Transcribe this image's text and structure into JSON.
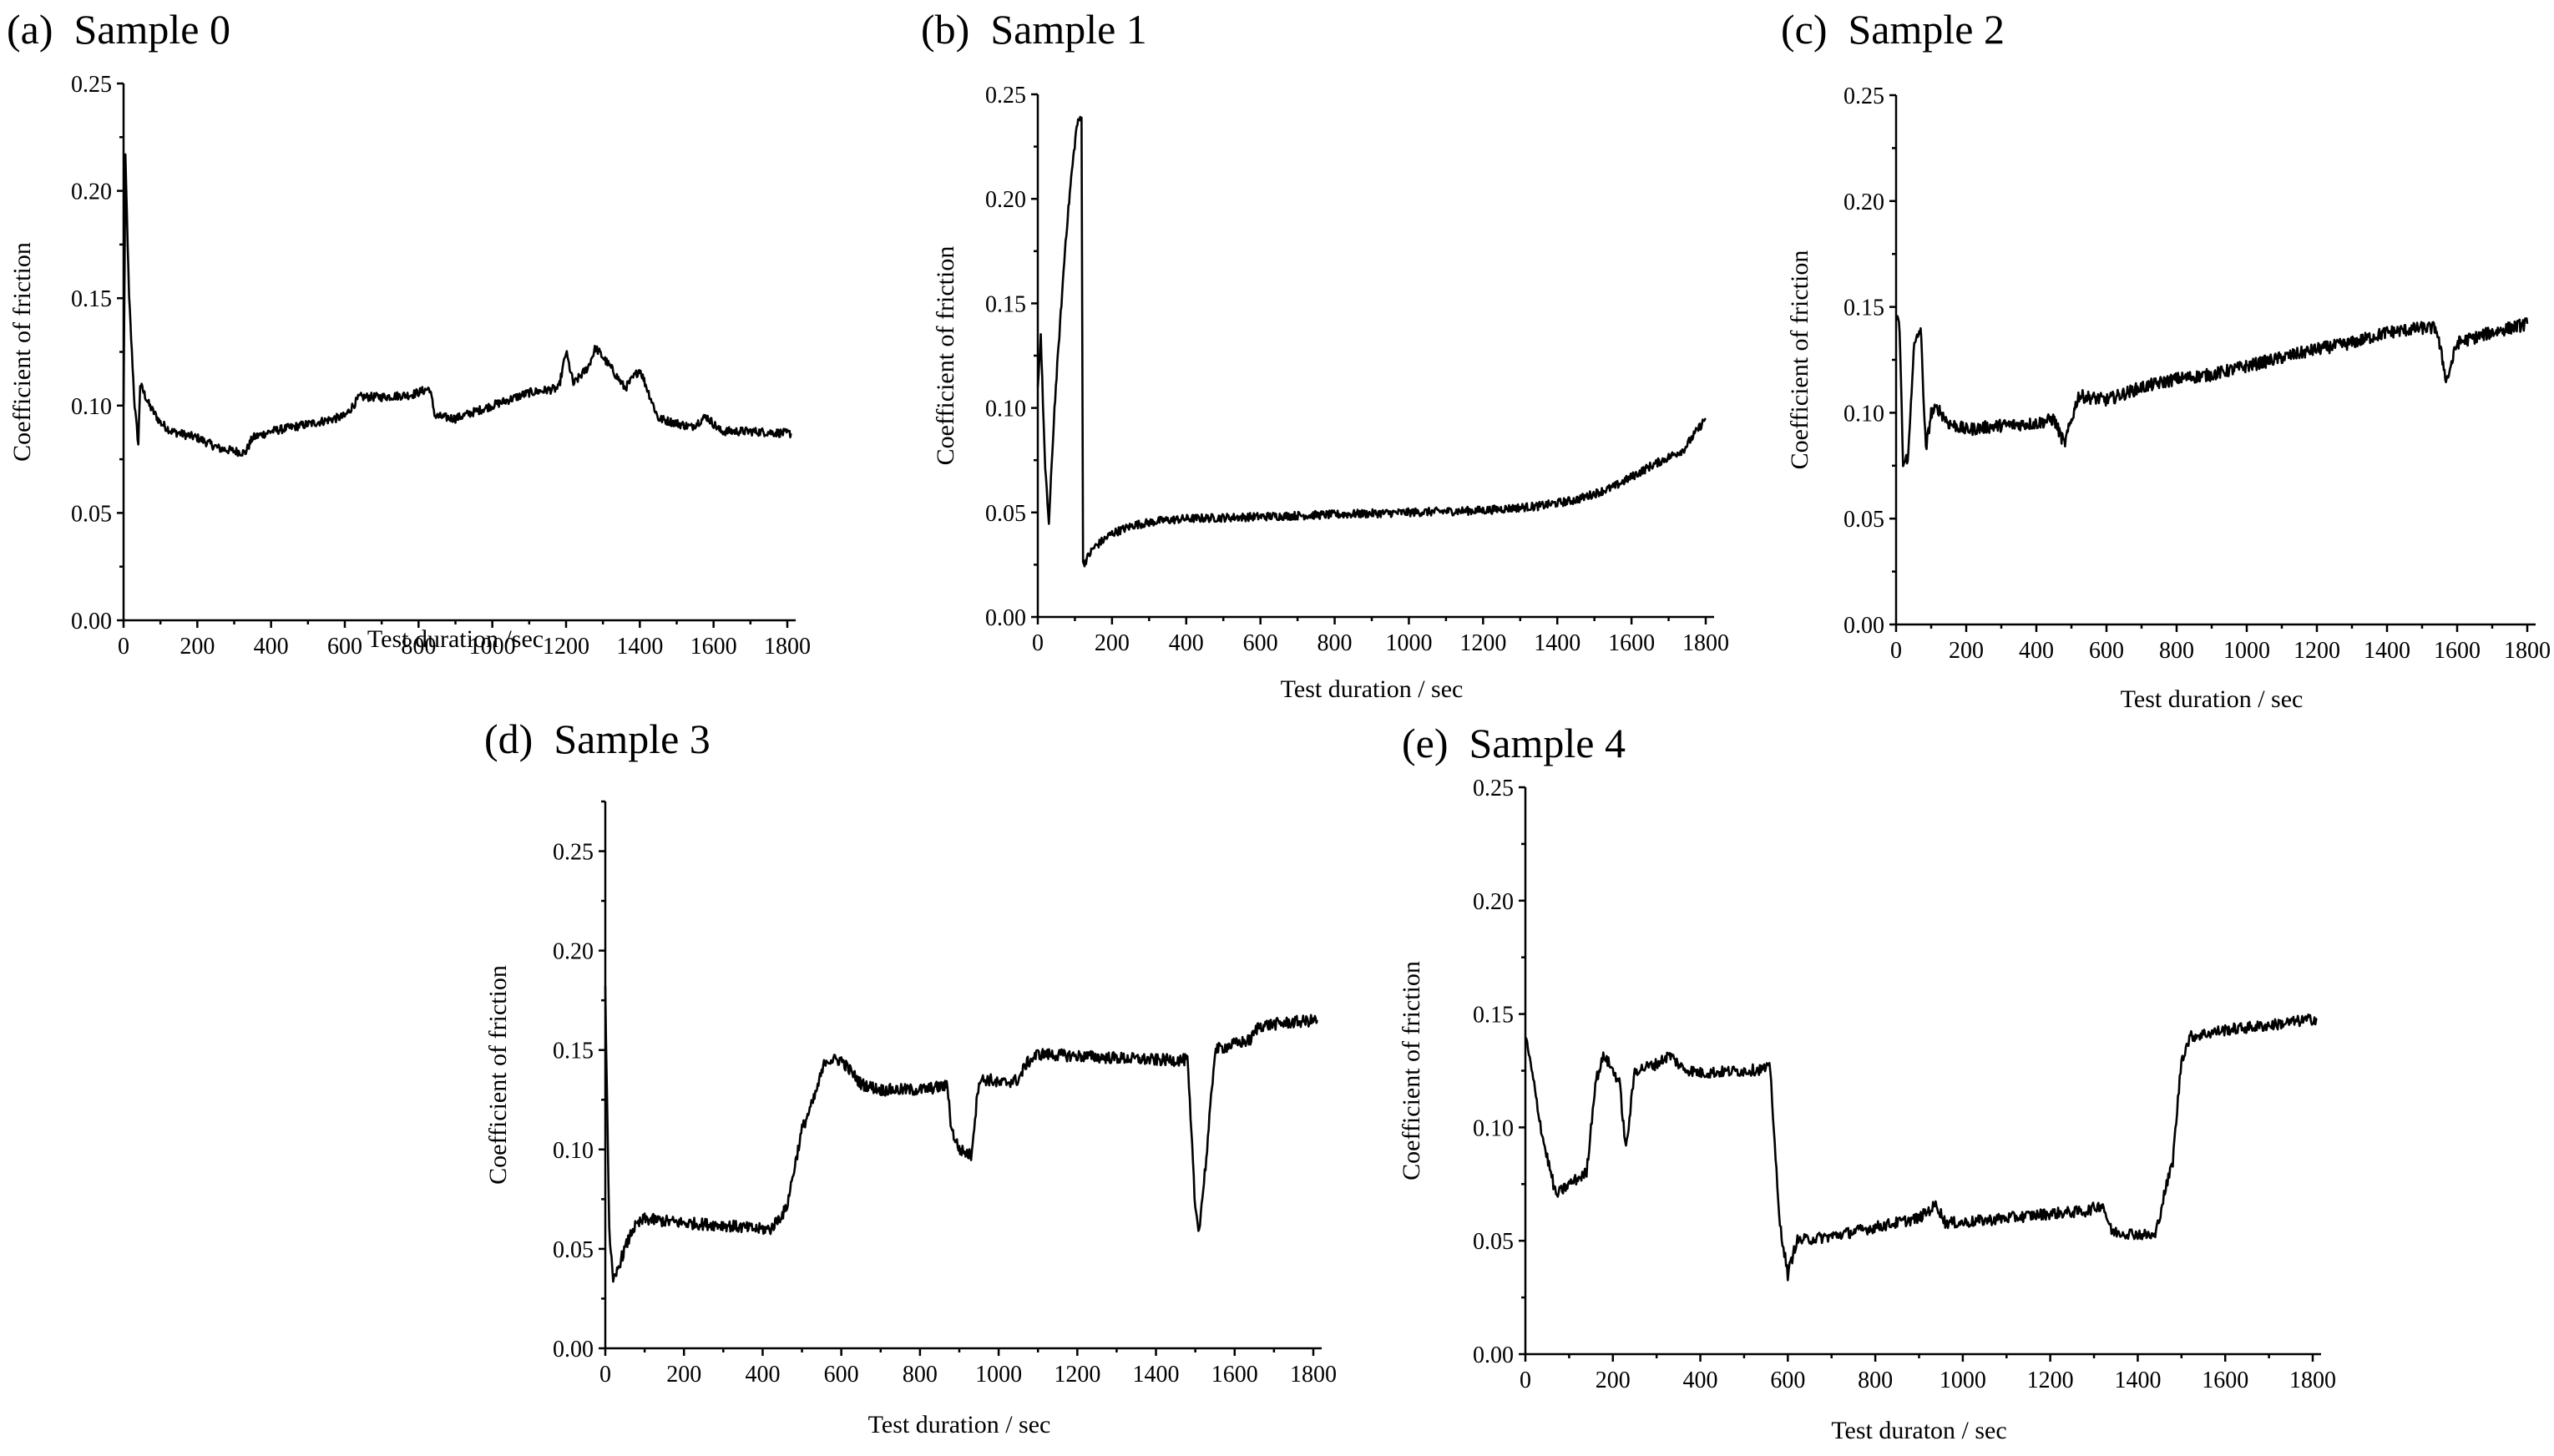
{
  "chart_data": [
    {
      "type": "line",
      "panel_label": "(a)",
      "title": "Sample 0",
      "xlabel": "Test duration /sec",
      "ylabel": "Coefficient of friction",
      "xlim": [
        0,
        1800
      ],
      "ylim": [
        0,
        0.25
      ],
      "x_ticks": [
        "0",
        "200",
        "400",
        "600",
        "800",
        "1000",
        "1200",
        "1400",
        "1600",
        "1800"
      ],
      "y_ticks": [
        "0.00",
        "0.05",
        "0.10",
        "0.15",
        "0.20",
        "0.25"
      ],
      "series": [
        {
          "name": "Sample 0",
          "noise": 0.002,
          "points": [
            [
              0,
              0.1
            ],
            [
              5,
              0.215
            ],
            [
              15,
              0.15
            ],
            [
              30,
              0.1
            ],
            [
              40,
              0.082
            ],
            [
              45,
              0.11
            ],
            [
              70,
              0.1
            ],
            [
              100,
              0.092
            ],
            [
              130,
              0.088
            ],
            [
              200,
              0.085
            ],
            [
              260,
              0.08
            ],
            [
              330,
              0.078
            ],
            [
              350,
              0.085
            ],
            [
              400,
              0.088
            ],
            [
              460,
              0.09
            ],
            [
              520,
              0.092
            ],
            [
              600,
              0.095
            ],
            [
              640,
              0.104
            ],
            [
              700,
              0.104
            ],
            [
              780,
              0.105
            ],
            [
              830,
              0.108
            ],
            [
              845,
              0.095
            ],
            [
              900,
              0.094
            ],
            [
              1000,
              0.1
            ],
            [
              1100,
              0.106
            ],
            [
              1180,
              0.108
            ],
            [
              1200,
              0.125
            ],
            [
              1220,
              0.11
            ],
            [
              1260,
              0.118
            ],
            [
              1280,
              0.127
            ],
            [
              1320,
              0.118
            ],
            [
              1360,
              0.108
            ],
            [
              1400,
              0.117
            ],
            [
              1450,
              0.094
            ],
            [
              1540,
              0.09
            ],
            [
              1580,
              0.095
            ],
            [
              1620,
              0.088
            ],
            [
              1700,
              0.088
            ],
            [
              1810,
              0.087
            ]
          ]
        }
      ]
    },
    {
      "type": "line",
      "panel_label": "(b)",
      "title": "Sample 1",
      "xlabel": "Test duration / sec",
      "ylabel": "Coefficient of friction",
      "xlim": [
        0,
        1800
      ],
      "ylim": [
        0,
        0.25
      ],
      "x_ticks": [
        "0",
        "200",
        "400",
        "600",
        "800",
        "1000",
        "1200",
        "1400",
        "1600",
        "1800"
      ],
      "y_ticks": [
        "0.00",
        "0.05",
        "0.10",
        "0.15",
        "0.20",
        "0.25"
      ],
      "series": [
        {
          "name": "Sample 1",
          "noise": 0.002,
          "points": [
            [
              0,
              0.11
            ],
            [
              8,
              0.135
            ],
            [
              20,
              0.07
            ],
            [
              30,
              0.045
            ],
            [
              45,
              0.1
            ],
            [
              60,
              0.14
            ],
            [
              75,
              0.18
            ],
            [
              90,
              0.21
            ],
            [
              105,
              0.235
            ],
            [
              118,
              0.24
            ],
            [
              122,
              0.025
            ],
            [
              150,
              0.033
            ],
            [
              200,
              0.04
            ],
            [
              260,
              0.044
            ],
            [
              330,
              0.046
            ],
            [
              400,
              0.047
            ],
            [
              600,
              0.048
            ],
            [
              800,
              0.049
            ],
            [
              1000,
              0.05
            ],
            [
              1200,
              0.051
            ],
            [
              1350,
              0.053
            ],
            [
              1450,
              0.056
            ],
            [
              1550,
              0.062
            ],
            [
              1650,
              0.072
            ],
            [
              1740,
              0.08
            ],
            [
              1800,
              0.095
            ]
          ]
        }
      ]
    },
    {
      "type": "line",
      "panel_label": "(c)",
      "title": "Sample 2",
      "xlabel": "Test duration / sec",
      "ylabel": "Coefficient of friction",
      "xlim": [
        0,
        1800
      ],
      "ylim": [
        0,
        0.25
      ],
      "x_ticks": [
        "0",
        "200",
        "400",
        "600",
        "800",
        "1000",
        "1200",
        "1400",
        "1600",
        "1800"
      ],
      "y_ticks": [
        "0.00",
        "0.05",
        "0.10",
        "0.15",
        "0.20",
        "0.25"
      ],
      "series": [
        {
          "name": "Sample 2",
          "noise": 0.003,
          "points": [
            [
              0,
              0.145
            ],
            [
              10,
              0.14
            ],
            [
              20,
              0.075
            ],
            [
              35,
              0.08
            ],
            [
              50,
              0.13
            ],
            [
              70,
              0.14
            ],
            [
              85,
              0.082
            ],
            [
              100,
              0.1
            ],
            [
              120,
              0.102
            ],
            [
              150,
              0.095
            ],
            [
              200,
              0.092
            ],
            [
              300,
              0.094
            ],
            [
              400,
              0.095
            ],
            [
              450,
              0.097
            ],
            [
              480,
              0.085
            ],
            [
              520,
              0.108
            ],
            [
              600,
              0.106
            ],
            [
              700,
              0.112
            ],
            [
              800,
              0.116
            ],
            [
              900,
              0.118
            ],
            [
              1000,
              0.122
            ],
            [
              1100,
              0.126
            ],
            [
              1200,
              0.13
            ],
            [
              1300,
              0.133
            ],
            [
              1400,
              0.138
            ],
            [
              1500,
              0.14
            ],
            [
              1540,
              0.14
            ],
            [
              1570,
              0.115
            ],
            [
              1600,
              0.133
            ],
            [
              1700,
              0.138
            ],
            [
              1800,
              0.142
            ]
          ]
        }
      ]
    },
    {
      "type": "line",
      "panel_label": "(d)",
      "title": "Sample 3",
      "xlabel": "Test duration / sec",
      "ylabel": "Coefficient of friction",
      "xlim": [
        0,
        1800
      ],
      "ylim": [
        0,
        0.275
      ],
      "x_ticks": [
        "0",
        "200",
        "400",
        "600",
        "800",
        "1000",
        "1200",
        "1400",
        "1600",
        "1800"
      ],
      "y_ticks": [
        "0.00",
        "0.05",
        "0.10",
        "0.15",
        "0.20",
        "0.25"
      ],
      "series": [
        {
          "name": "Sample 3",
          "noise": 0.003,
          "points": [
            [
              0,
              0.18
            ],
            [
              10,
              0.06
            ],
            [
              20,
              0.032
            ],
            [
              40,
              0.045
            ],
            [
              70,
              0.06
            ],
            [
              100,
              0.065
            ],
            [
              200,
              0.063
            ],
            [
              300,
              0.062
            ],
            [
              380,
              0.06
            ],
            [
              420,
              0.06
            ],
            [
              460,
              0.07
            ],
            [
              480,
              0.09
            ],
            [
              500,
              0.11
            ],
            [
              530,
              0.125
            ],
            [
              560,
              0.145
            ],
            [
              600,
              0.145
            ],
            [
              650,
              0.133
            ],
            [
              700,
              0.13
            ],
            [
              800,
              0.13
            ],
            [
              870,
              0.132
            ],
            [
              880,
              0.11
            ],
            [
              900,
              0.1
            ],
            [
              930,
              0.097
            ],
            [
              950,
              0.135
            ],
            [
              980,
              0.135
            ],
            [
              1000,
              0.133
            ],
            [
              1050,
              0.135
            ],
            [
              1070,
              0.143
            ],
            [
              1100,
              0.148
            ],
            [
              1200,
              0.147
            ],
            [
              1300,
              0.146
            ],
            [
              1400,
              0.145
            ],
            [
              1480,
              0.145
            ],
            [
              1500,
              0.07
            ],
            [
              1510,
              0.06
            ],
            [
              1530,
              0.1
            ],
            [
              1550,
              0.15
            ],
            [
              1600,
              0.153
            ],
            [
              1640,
              0.155
            ],
            [
              1660,
              0.162
            ],
            [
              1700,
              0.163
            ],
            [
              1750,
              0.164
            ],
            [
              1810,
              0.165
            ]
          ]
        }
      ]
    },
    {
      "type": "line",
      "panel_label": "(e)",
      "title": "Sample 4",
      "xlabel": "Test duraton / sec",
      "ylabel": "Coefficient of friction",
      "xlim": [
        0,
        1800
      ],
      "ylim": [
        0,
        0.25
      ],
      "x_ticks": [
        "0",
        "200",
        "400",
        "600",
        "800",
        "1000",
        "1200",
        "1400",
        "1600",
        "1800"
      ],
      "y_ticks": [
        "0.00",
        "0.05",
        "0.10",
        "0.15",
        "0.20",
        "0.25"
      ],
      "series": [
        {
          "name": "Sample 4",
          "noise": 0.0025,
          "points": [
            [
              0,
              0.14
            ],
            [
              10,
              0.13
            ],
            [
              40,
              0.095
            ],
            [
              70,
              0.07
            ],
            [
              100,
              0.075
            ],
            [
              140,
              0.08
            ],
            [
              160,
              0.12
            ],
            [
              180,
              0.132
            ],
            [
              200,
              0.125
            ],
            [
              215,
              0.12
            ],
            [
              230,
              0.09
            ],
            [
              250,
              0.125
            ],
            [
              300,
              0.128
            ],
            [
              330,
              0.132
            ],
            [
              360,
              0.126
            ],
            [
              400,
              0.124
            ],
            [
              500,
              0.125
            ],
            [
              560,
              0.126
            ],
            [
              580,
              0.06
            ],
            [
              600,
              0.035
            ],
            [
              620,
              0.05
            ],
            [
              700,
              0.052
            ],
            [
              800,
              0.056
            ],
            [
              900,
              0.06
            ],
            [
              940,
              0.066
            ],
            [
              960,
              0.058
            ],
            [
              1000,
              0.058
            ],
            [
              1100,
              0.06
            ],
            [
              1200,
              0.062
            ],
            [
              1280,
              0.063
            ],
            [
              1320,
              0.066
            ],
            [
              1340,
              0.054
            ],
            [
              1400,
              0.053
            ],
            [
              1440,
              0.052
            ],
            [
              1460,
              0.07
            ],
            [
              1480,
              0.085
            ],
            [
              1500,
              0.13
            ],
            [
              1520,
              0.14
            ],
            [
              1600,
              0.143
            ],
            [
              1700,
              0.145
            ],
            [
              1810,
              0.148
            ]
          ]
        }
      ]
    }
  ]
}
